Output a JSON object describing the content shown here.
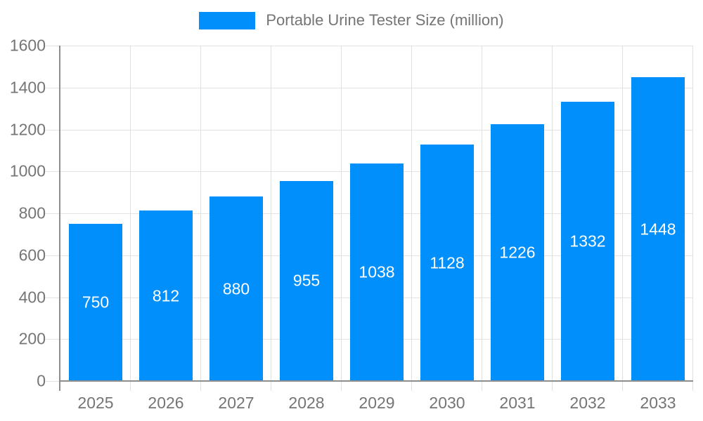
{
  "legend": {
    "label": "Portable Urine Tester Size (million)"
  },
  "chart_data": {
    "type": "bar",
    "title": "Portable Urine Tester Size (million)",
    "categories": [
      "2025",
      "2026",
      "2027",
      "2028",
      "2029",
      "2030",
      "2031",
      "2032",
      "2033"
    ],
    "values": [
      750,
      812,
      880,
      955,
      1038,
      1128,
      1226,
      1332,
      1448
    ],
    "xlabel": "",
    "ylabel": "",
    "ylim": [
      0,
      1600
    ],
    "ytick_step": 200,
    "yticks": [
      0,
      200,
      400,
      600,
      800,
      1000,
      1200,
      1400,
      1600
    ],
    "grid": true,
    "legend_position": "top-center",
    "value_label_position": "inside-center",
    "colors": {
      "bar": "#008FFB",
      "axis": "#8d8d8d",
      "grid": "#e3e3e3",
      "tick_text": "#757575",
      "value_text": "#ffffff",
      "background": "#ffffff"
    }
  }
}
